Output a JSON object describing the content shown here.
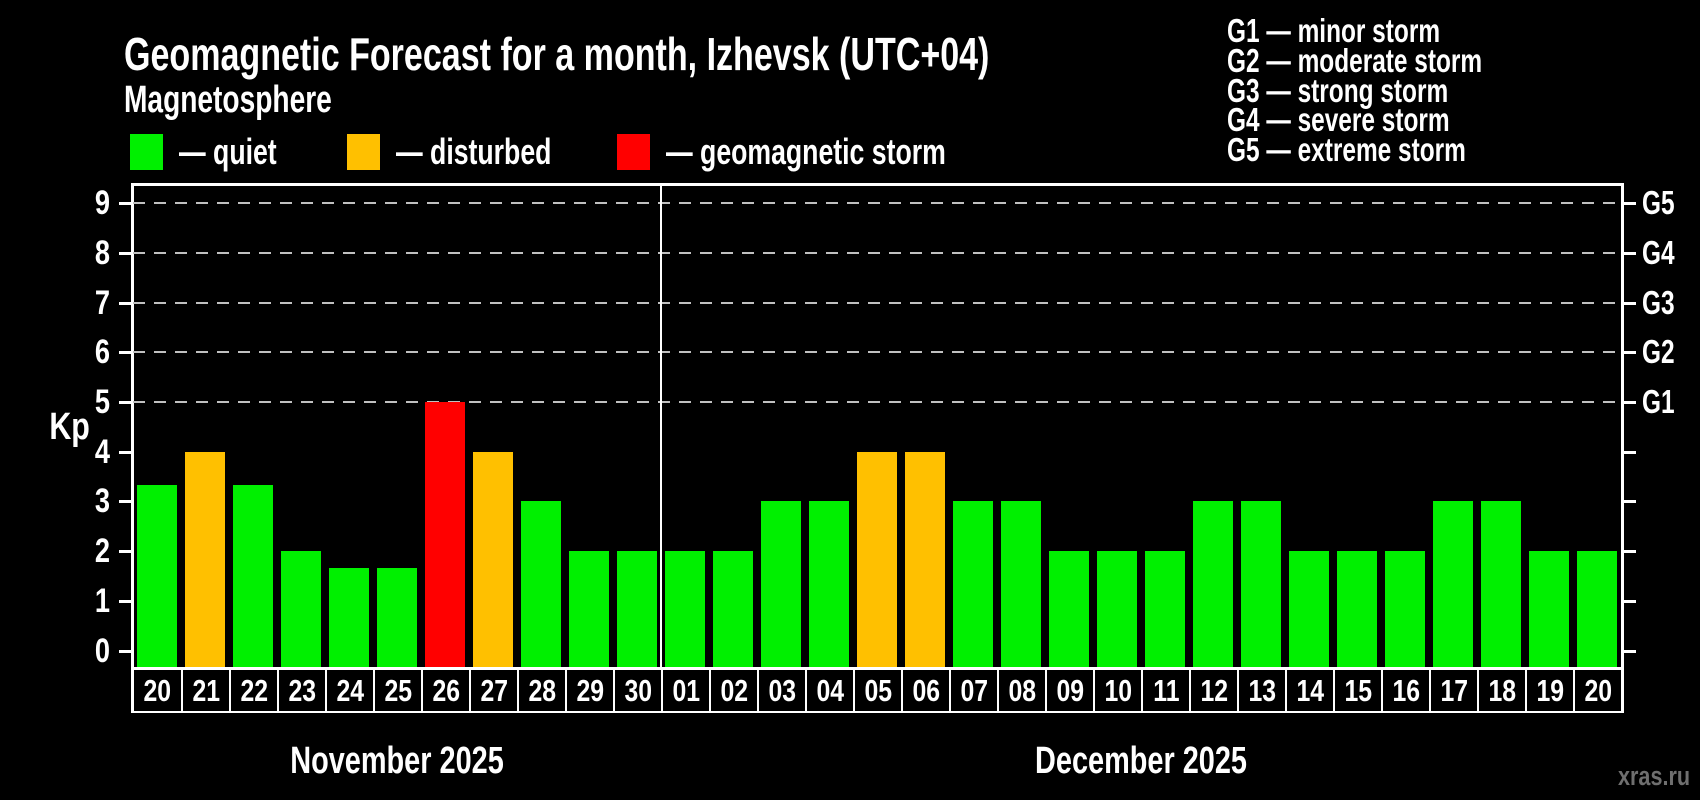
{
  "title": "Geomagnetic Forecast for a month, Izhevsk (UTC+04)",
  "subtitle": "Magnetosphere",
  "legend": {
    "quiet_label": "— quiet",
    "disturbed_label": "— disturbed",
    "storm_label": "— geomagnetic storm"
  },
  "g_scale_legend": {
    "lines": [
      "G1 — minor storm",
      "G2 — moderate storm",
      "G3 — strong storm",
      "G4 — severe storm",
      "G5 — extreme storm"
    ]
  },
  "y_axis": {
    "label": "Kp",
    "ticks": [
      "0",
      "1",
      "2",
      "3",
      "4",
      "5",
      "6",
      "7",
      "8",
      "9"
    ]
  },
  "right_axis": {
    "labels": [
      "G1",
      "G2",
      "G3",
      "G4",
      "G5"
    ]
  },
  "months": [
    {
      "label": "November 2025"
    },
    {
      "label": "December 2025"
    }
  ],
  "watermark": "xras.ru",
  "colors": {
    "quiet": "#00f000",
    "disturbed": "#ffc000",
    "storm": "#ff0000",
    "grid": "#c0c0c0",
    "axis": "#ffffff"
  },
  "chart_data": {
    "type": "bar",
    "title": "Geomagnetic Forecast for a month, Izhevsk (UTC+04)",
    "xlabel": "",
    "ylabel": "Kp",
    "ylim": [
      0,
      9
    ],
    "grid_kp_levels": [
      5,
      6,
      7,
      8,
      9
    ],
    "legend_position": "top",
    "bars": [
      {
        "month": "November 2025",
        "day": "20",
        "kp": 3.33,
        "status": "quiet"
      },
      {
        "month": "November 2025",
        "day": "21",
        "kp": 4,
        "status": "disturbed"
      },
      {
        "month": "November 2025",
        "day": "22",
        "kp": 3.33,
        "status": "quiet"
      },
      {
        "month": "November 2025",
        "day": "23",
        "kp": 2,
        "status": "quiet"
      },
      {
        "month": "November 2025",
        "day": "24",
        "kp": 1.67,
        "status": "quiet"
      },
      {
        "month": "November 2025",
        "day": "25",
        "kp": 1.67,
        "status": "quiet"
      },
      {
        "month": "November 2025",
        "day": "26",
        "kp": 5,
        "status": "storm"
      },
      {
        "month": "November 2025",
        "day": "27",
        "kp": 4,
        "status": "disturbed"
      },
      {
        "month": "November 2025",
        "day": "28",
        "kp": 3,
        "status": "quiet"
      },
      {
        "month": "November 2025",
        "day": "29",
        "kp": 2,
        "status": "quiet"
      },
      {
        "month": "November 2025",
        "day": "30",
        "kp": 2,
        "status": "quiet"
      },
      {
        "month": "December 2025",
        "day": "01",
        "kp": 2,
        "status": "quiet"
      },
      {
        "month": "December 2025",
        "day": "02",
        "kp": 2,
        "status": "quiet"
      },
      {
        "month": "December 2025",
        "day": "03",
        "kp": 3,
        "status": "quiet"
      },
      {
        "month": "December 2025",
        "day": "04",
        "kp": 3,
        "status": "quiet"
      },
      {
        "month": "December 2025",
        "day": "05",
        "kp": 4,
        "status": "disturbed"
      },
      {
        "month": "December 2025",
        "day": "06",
        "kp": 4,
        "status": "disturbed"
      },
      {
        "month": "December 2025",
        "day": "07",
        "kp": 3,
        "status": "quiet"
      },
      {
        "month": "December 2025",
        "day": "08",
        "kp": 3,
        "status": "quiet"
      },
      {
        "month": "December 2025",
        "day": "09",
        "kp": 2,
        "status": "quiet"
      },
      {
        "month": "December 2025",
        "day": "10",
        "kp": 2,
        "status": "quiet"
      },
      {
        "month": "December 2025",
        "day": "11",
        "kp": 2,
        "status": "quiet"
      },
      {
        "month": "December 2025",
        "day": "12",
        "kp": 3,
        "status": "quiet"
      },
      {
        "month": "December 2025",
        "day": "13",
        "kp": 3,
        "status": "quiet"
      },
      {
        "month": "December 2025",
        "day": "14",
        "kp": 2,
        "status": "quiet"
      },
      {
        "month": "December 2025",
        "day": "15",
        "kp": 2,
        "status": "quiet"
      },
      {
        "month": "December 2025",
        "day": "16",
        "kp": 2,
        "status": "quiet"
      },
      {
        "month": "December 2025",
        "day": "17",
        "kp": 3,
        "status": "quiet"
      },
      {
        "month": "December 2025",
        "day": "18",
        "kp": 3,
        "status": "quiet"
      },
      {
        "month": "December 2025",
        "day": "19",
        "kp": 2,
        "status": "quiet"
      },
      {
        "month": "December 2025",
        "day": "20",
        "kp": 2,
        "status": "quiet"
      }
    ]
  }
}
